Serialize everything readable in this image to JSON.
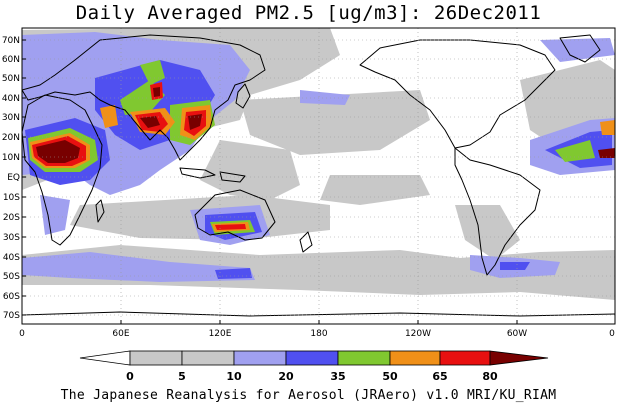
{
  "title": "Daily Averaged PM2.5 [ug/m3]: 26Dec2011",
  "latitude_labels": [
    "70N",
    "60N",
    "50N",
    "40N",
    "30N",
    "20N",
    "10N",
    "EQ",
    "10S",
    "20S",
    "30S",
    "40S",
    "50S",
    "60S",
    "70S"
  ],
  "longitude_labels": [
    "0",
    "60E",
    "120E",
    "180",
    "120W",
    "60W",
    "0"
  ],
  "colorbar": {
    "ticks": [
      "0",
      "5",
      "10",
      "20",
      "35",
      "50",
      "65",
      "80"
    ],
    "colors": [
      "#ffffff",
      "#c8c8c8",
      "#a0a0f0",
      "#5050f0",
      "#80c830",
      "#f09018",
      "#e81010",
      "#780000"
    ]
  },
  "credit": "The Japanese Reanalysis for Aerosol (JRAero) v1.0 MRI/KU_RIAM"
}
